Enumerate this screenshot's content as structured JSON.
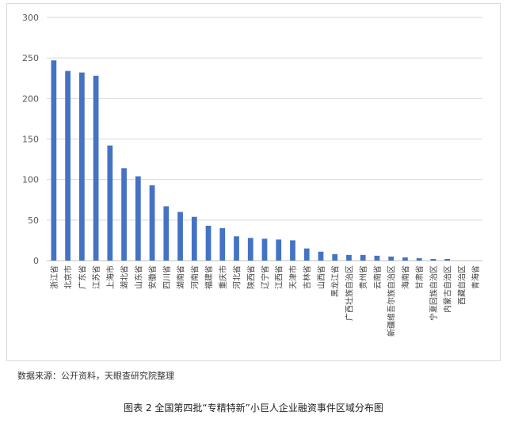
{
  "chart_data": {
    "type": "bar",
    "title": "",
    "xlabel": "",
    "ylabel": "",
    "ylim": [
      0,
      300
    ],
    "yticks": [
      0,
      50,
      100,
      150,
      200,
      250,
      300
    ],
    "grid": true,
    "bar_color": "#4472c4",
    "categories": [
      "浙江省",
      "北京市",
      "广东省",
      "江苏省",
      "上海市",
      "湖北省",
      "山东省",
      "安徽省",
      "四川省",
      "湖南省",
      "河南省",
      "福建省",
      "重庆市",
      "河北省",
      "陕西省",
      "辽宁省",
      "江西省",
      "天津市",
      "吉林省",
      "山西省",
      "黑龙江省",
      "广西壮族自治区",
      "贵州省",
      "云南省",
      "新疆维吾尔族自治区",
      "海南省",
      "甘肃省",
      "宁夏回族自治区",
      "内蒙古自治区",
      "西藏自治区",
      "青海省"
    ],
    "values": [
      247,
      234,
      232,
      228,
      142,
      114,
      104,
      93,
      67,
      60,
      54,
      43,
      40,
      30,
      28,
      27,
      26,
      25,
      15,
      11,
      8,
      7,
      7,
      6,
      5,
      4,
      3,
      2,
      2,
      0,
      0
    ]
  },
  "source_note": "数据来源：公开资料，天眼查研究院整理",
  "caption": "图表 2  全国第四批“专精特新”小巨人企业融资事件区域分布图"
}
